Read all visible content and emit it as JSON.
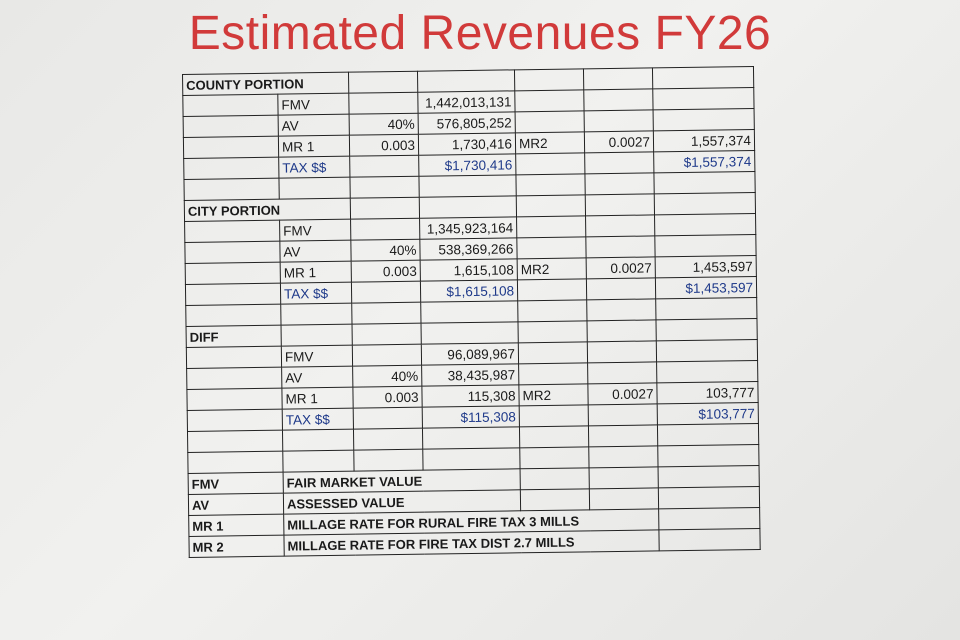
{
  "title": "Estimated Revenues FY26",
  "county": {
    "header": "COUNTY PORTION",
    "fmv_label": "FMV",
    "fmv_value": "1,442,013,131",
    "av_label": "AV",
    "av_pct": "40%",
    "av_value": "576,805,252",
    "mr1_label": "MR 1",
    "mr1_rate": "0.003",
    "mr1_value": "1,730,416",
    "mr2_label": "MR2",
    "mr2_rate": "0.0027",
    "mr2_value": "1,557,374",
    "tax_label": "TAX $$",
    "tax1": "$1,730,416",
    "tax2": "$1,557,374"
  },
  "city": {
    "header": "CITY PORTION",
    "fmv_label": "FMV",
    "fmv_value": "1,345,923,164",
    "av_label": "AV",
    "av_pct": "40%",
    "av_value": "538,369,266",
    "mr1_label": "MR 1",
    "mr1_rate": "0.003",
    "mr1_value": "1,615,108",
    "mr2_label": "MR2",
    "mr2_rate": "0.0027",
    "mr2_value": "1,453,597",
    "tax_label": "TAX $$",
    "tax1": "$1,615,108",
    "tax2": "$1,453,597"
  },
  "diff": {
    "header": "DIFF",
    "fmv_label": "FMV",
    "fmv_value": "96,089,967",
    "av_label": "AV",
    "av_pct": "40%",
    "av_value": "38,435,987",
    "mr1_label": "MR 1",
    "mr1_rate": "0.003",
    "mr1_value": "115,308",
    "mr2_label": "MR2",
    "mr2_rate": "0.0027",
    "mr2_value": "103,777",
    "tax_label": "TAX $$",
    "tax1": "$115,308",
    "tax2": "$103,777"
  },
  "legend": [
    {
      "abbr": "FMV",
      "definition": "FAIR MARKET VALUE"
    },
    {
      "abbr": "AV",
      "definition": "ASSESSED VALUE"
    },
    {
      "abbr": "MR 1",
      "definition": "MILLAGE RATE FOR RURAL FIRE TAX 3 MILLS"
    },
    {
      "abbr": "MR 2",
      "definition": "MILLAGE RATE FOR FIRE TAX DIST 2.7 MILLS"
    }
  ]
}
